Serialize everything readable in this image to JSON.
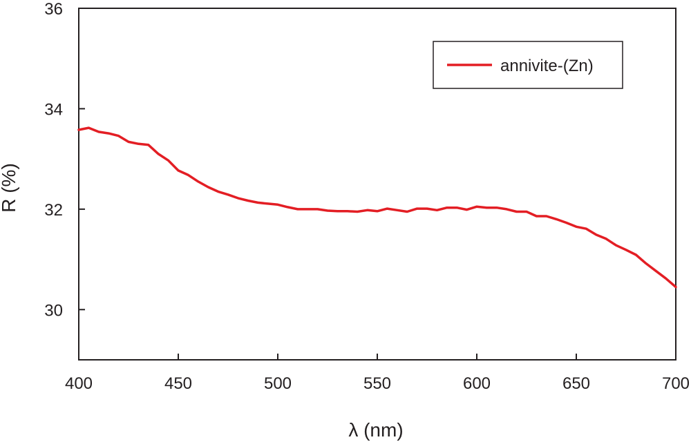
{
  "chart_data": {
    "type": "line",
    "title": "",
    "xlabel": "λ (nm)",
    "ylabel": "R (%)",
    "xlim": [
      400,
      700
    ],
    "ylim": [
      29,
      36
    ],
    "x_ticks": [
      400,
      450,
      500,
      550,
      600,
      650,
      700
    ],
    "y_ticks": [
      30,
      32,
      34,
      36
    ],
    "x_tick_labels": [
      "400",
      "450",
      "500",
      "550",
      "600",
      "650",
      "700"
    ],
    "y_tick_labels": [
      "30",
      "32",
      "34",
      "36"
    ],
    "grid": false,
    "legend_position": "top-right",
    "series": [
      {
        "name": "annivite-(Zn)",
        "color": "#e31e24",
        "x": [
          400,
          405,
          410,
          415,
          420,
          425,
          430,
          435,
          440,
          445,
          450,
          455,
          460,
          465,
          470,
          475,
          480,
          485,
          490,
          495,
          500,
          505,
          510,
          515,
          520,
          525,
          530,
          535,
          540,
          545,
          550,
          555,
          560,
          565,
          570,
          575,
          580,
          585,
          590,
          595,
          600,
          605,
          610,
          615,
          620,
          625,
          630,
          635,
          640,
          645,
          650,
          655,
          660,
          665,
          670,
          675,
          680,
          685,
          690,
          695,
          700
        ],
        "y": [
          33.58,
          33.62,
          33.54,
          33.51,
          33.46,
          33.34,
          33.3,
          33.28,
          33.1,
          32.97,
          32.77,
          32.68,
          32.55,
          32.44,
          32.35,
          32.29,
          32.22,
          32.17,
          32.13,
          32.11,
          32.09,
          32.04,
          32.0,
          32.0,
          32.0,
          31.97,
          31.96,
          31.96,
          31.95,
          31.98,
          31.96,
          32.01,
          31.98,
          31.95,
          32.01,
          32.01,
          31.98,
          32.03,
          32.03,
          31.99,
          32.05,
          32.03,
          32.03,
          32.0,
          31.95,
          31.95,
          31.86,
          31.86,
          31.8,
          31.73,
          31.65,
          31.61,
          31.49,
          31.41,
          31.28,
          31.19,
          31.09,
          30.92,
          30.77,
          30.62,
          30.45
        ]
      }
    ]
  }
}
